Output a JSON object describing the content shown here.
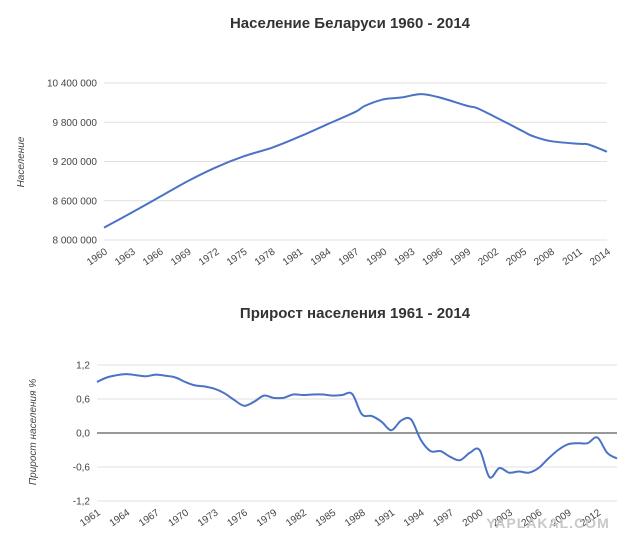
{
  "watermark": "YAPLAKAL.COM",
  "chart_data": [
    {
      "type": "line",
      "title": "Население Беларуси 1960 - 2014",
      "ylabel": "Население",
      "xlabel": "",
      "ylim": [
        8000000,
        10400000
      ],
      "yticks": [
        8000000,
        8600000,
        9200000,
        9800000,
        10400000
      ],
      "ytick_labels": [
        "8 000 000",
        "8 600 000",
        "9 200 000",
        "9 800 000",
        "10 400 000"
      ],
      "xticks": [
        1960,
        1963,
        1966,
        1969,
        1972,
        1975,
        1978,
        1981,
        1984,
        1987,
        1990,
        1993,
        1996,
        1999,
        2002,
        2005,
        2008,
        2011,
        2014
      ],
      "xtick_labels": [
        "1960",
        "1963",
        "1966",
        "1969",
        "1972",
        "1975",
        "1978",
        "1981",
        "1984",
        "1987",
        "1990",
        "1993",
        "1996",
        "1999",
        "2002",
        "2005",
        "2008",
        "2011",
        "2014"
      ],
      "xlim": [
        1960,
        2014
      ],
      "grid": true,
      "line_color": "#4a73c6",
      "series": [
        {
          "values": [
            [
              1960,
              8190000
            ],
            [
              1963,
              8420000
            ],
            [
              1966,
              8660000
            ],
            [
              1969,
              8900000
            ],
            [
              1972,
              9110000
            ],
            [
              1975,
              9280000
            ],
            [
              1978,
              9410000
            ],
            [
              1981,
              9580000
            ],
            [
              1984,
              9770000
            ],
            [
              1987,
              9960000
            ],
            [
              1988,
              10050000
            ],
            [
              1990,
              10150000
            ],
            [
              1992,
              10180000
            ],
            [
              1994,
              10230000
            ],
            [
              1996,
              10180000
            ],
            [
              1999,
              10050000
            ],
            [
              2000,
              10020000
            ],
            [
              2002,
              9880000
            ],
            [
              2005,
              9660000
            ],
            [
              2006,
              9590000
            ],
            [
              2008,
              9510000
            ],
            [
              2011,
              9470000
            ],
            [
              2012,
              9460000
            ],
            [
              2014,
              9350000
            ]
          ]
        }
      ]
    },
    {
      "type": "line",
      "title": "Прирост населения 1961 - 2014",
      "ylabel": "Прирост населения %",
      "xlabel": "",
      "ylim": [
        -1.2,
        1.2
      ],
      "yticks": [
        -1.2,
        -0.6,
        0.0,
        0.6,
        1.2
      ],
      "ytick_labels": [
        "-1,2",
        "-0,6",
        "0,0",
        "0,6",
        "1,2"
      ],
      "xticks": [
        1961,
        1964,
        1967,
        1970,
        1973,
        1976,
        1979,
        1982,
        1985,
        1988,
        1991,
        1994,
        1997,
        2000,
        2003,
        2006,
        2009,
        2012
      ],
      "xtick_labels": [
        "1961",
        "1964",
        "1967",
        "1970",
        "1973",
        "1976",
        "1979",
        "1982",
        "1985",
        "1988",
        "1991",
        "1994",
        "1997",
        "2000",
        "2003",
        "2006",
        "2009",
        "2012"
      ],
      "xlim": [
        1961,
        2014
      ],
      "grid": true,
      "line_color": "#4a73c6",
      "series": [
        {
          "values": [
            [
              1961,
              0.9
            ],
            [
              1962,
              0.98
            ],
            [
              1963,
              1.02
            ],
            [
              1964,
              1.04
            ],
            [
              1965,
              1.02
            ],
            [
              1966,
              1.0
            ],
            [
              1967,
              1.03
            ],
            [
              1968,
              1.01
            ],
            [
              1969,
              0.98
            ],
            [
              1970,
              0.9
            ],
            [
              1971,
              0.84
            ],
            [
              1972,
              0.82
            ],
            [
              1973,
              0.78
            ],
            [
              1974,
              0.7
            ],
            [
              1975,
              0.58
            ],
            [
              1976,
              0.48
            ],
            [
              1977,
              0.55
            ],
            [
              1978,
              0.66
            ],
            [
              1979,
              0.62
            ],
            [
              1980,
              0.62
            ],
            [
              1981,
              0.68
            ],
            [
              1982,
              0.67
            ],
            [
              1983,
              0.68
            ],
            [
              1984,
              0.68
            ],
            [
              1985,
              0.66
            ],
            [
              1986,
              0.67
            ],
            [
              1987,
              0.69
            ],
            [
              1988,
              0.33
            ],
            [
              1989,
              0.3
            ],
            [
              1990,
              0.2
            ],
            [
              1991,
              0.05
            ],
            [
              1992,
              0.22
            ],
            [
              1993,
              0.24
            ],
            [
              1994,
              -0.12
            ],
            [
              1995,
              -0.32
            ],
            [
              1996,
              -0.32
            ],
            [
              1997,
              -0.42
            ],
            [
              1998,
              -0.48
            ],
            [
              1999,
              -0.35
            ],
            [
              2000,
              -0.3
            ],
            [
              2001,
              -0.78
            ],
            [
              2002,
              -0.62
            ],
            [
              2003,
              -0.7
            ],
            [
              2004,
              -0.68
            ],
            [
              2005,
              -0.7
            ],
            [
              2006,
              -0.62
            ],
            [
              2007,
              -0.45
            ],
            [
              2008,
              -0.3
            ],
            [
              2009,
              -0.2
            ],
            [
              2010,
              -0.18
            ],
            [
              2011,
              -0.18
            ],
            [
              2012,
              -0.08
            ],
            [
              2013,
              -0.35
            ],
            [
              2014,
              -0.45
            ]
          ]
        }
      ]
    }
  ]
}
